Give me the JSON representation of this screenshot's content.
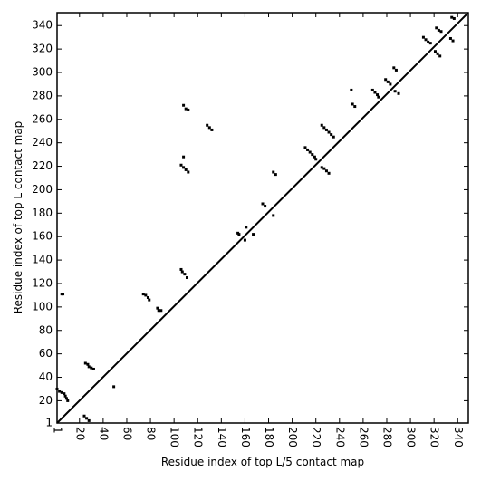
{
  "chart_data": {
    "type": "scatter",
    "xlabel": "Residue index of top L/5 contact map",
    "ylabel": "Residue index of top L contact map",
    "xlim": [
      1,
      349
    ],
    "ylim": [
      1,
      351
    ],
    "xticks": [
      1,
      20,
      40,
      60,
      80,
      100,
      120,
      140,
      160,
      180,
      200,
      220,
      240,
      260,
      280,
      300,
      320,
      340
    ],
    "yticks": [
      1,
      20,
      40,
      60,
      80,
      100,
      120,
      140,
      160,
      180,
      200,
      220,
      240,
      260,
      280,
      300,
      320,
      340
    ],
    "color": "#000000",
    "x": [
      1,
      3,
      5,
      7,
      8,
      9,
      10,
      5,
      6,
      25,
      27,
      28,
      30,
      32,
      24,
      26,
      28,
      49,
      74,
      76,
      78,
      79,
      86,
      87,
      89,
      106,
      107,
      109,
      111,
      108,
      110,
      112,
      106,
      108,
      110,
      112,
      108,
      128,
      130,
      132,
      154,
      155,
      160,
      161,
      167,
      175,
      177,
      184,
      186,
      184,
      211,
      213,
      215,
      217,
      219,
      220,
      225,
      227,
      229,
      231,
      233,
      235,
      225,
      227,
      229,
      231,
      250,
      251,
      253,
      268,
      270,
      272,
      273,
      279,
      281,
      283,
      286,
      288,
      287,
      290,
      311,
      313,
      315,
      317,
      322,
      324,
      326,
      321,
      323,
      325,
      334,
      336,
      335,
      337
    ],
    "values": [
      30,
      28,
      27,
      26,
      24,
      22,
      20,
      111,
      111,
      52,
      51,
      49,
      48,
      47,
      7,
      5,
      3,
      32,
      111,
      110,
      108,
      106,
      99,
      97,
      97,
      132,
      130,
      128,
      125,
      272,
      269,
      268,
      221,
      219,
      217,
      215,
      228,
      255,
      253,
      251,
      163,
      162,
      157,
      168,
      162,
      188,
      186,
      215,
      213,
      178,
      236,
      234,
      232,
      230,
      228,
      226,
      255,
      253,
      251,
      249,
      247,
      245,
      219,
      218,
      216,
      214,
      285,
      273,
      271,
      285,
      283,
      281,
      279,
      294,
      292,
      290,
      304,
      302,
      284,
      282,
      330,
      328,
      326,
      325,
      338,
      336,
      335,
      318,
      316,
      314,
      329,
      327,
      347,
      346
    ]
  }
}
